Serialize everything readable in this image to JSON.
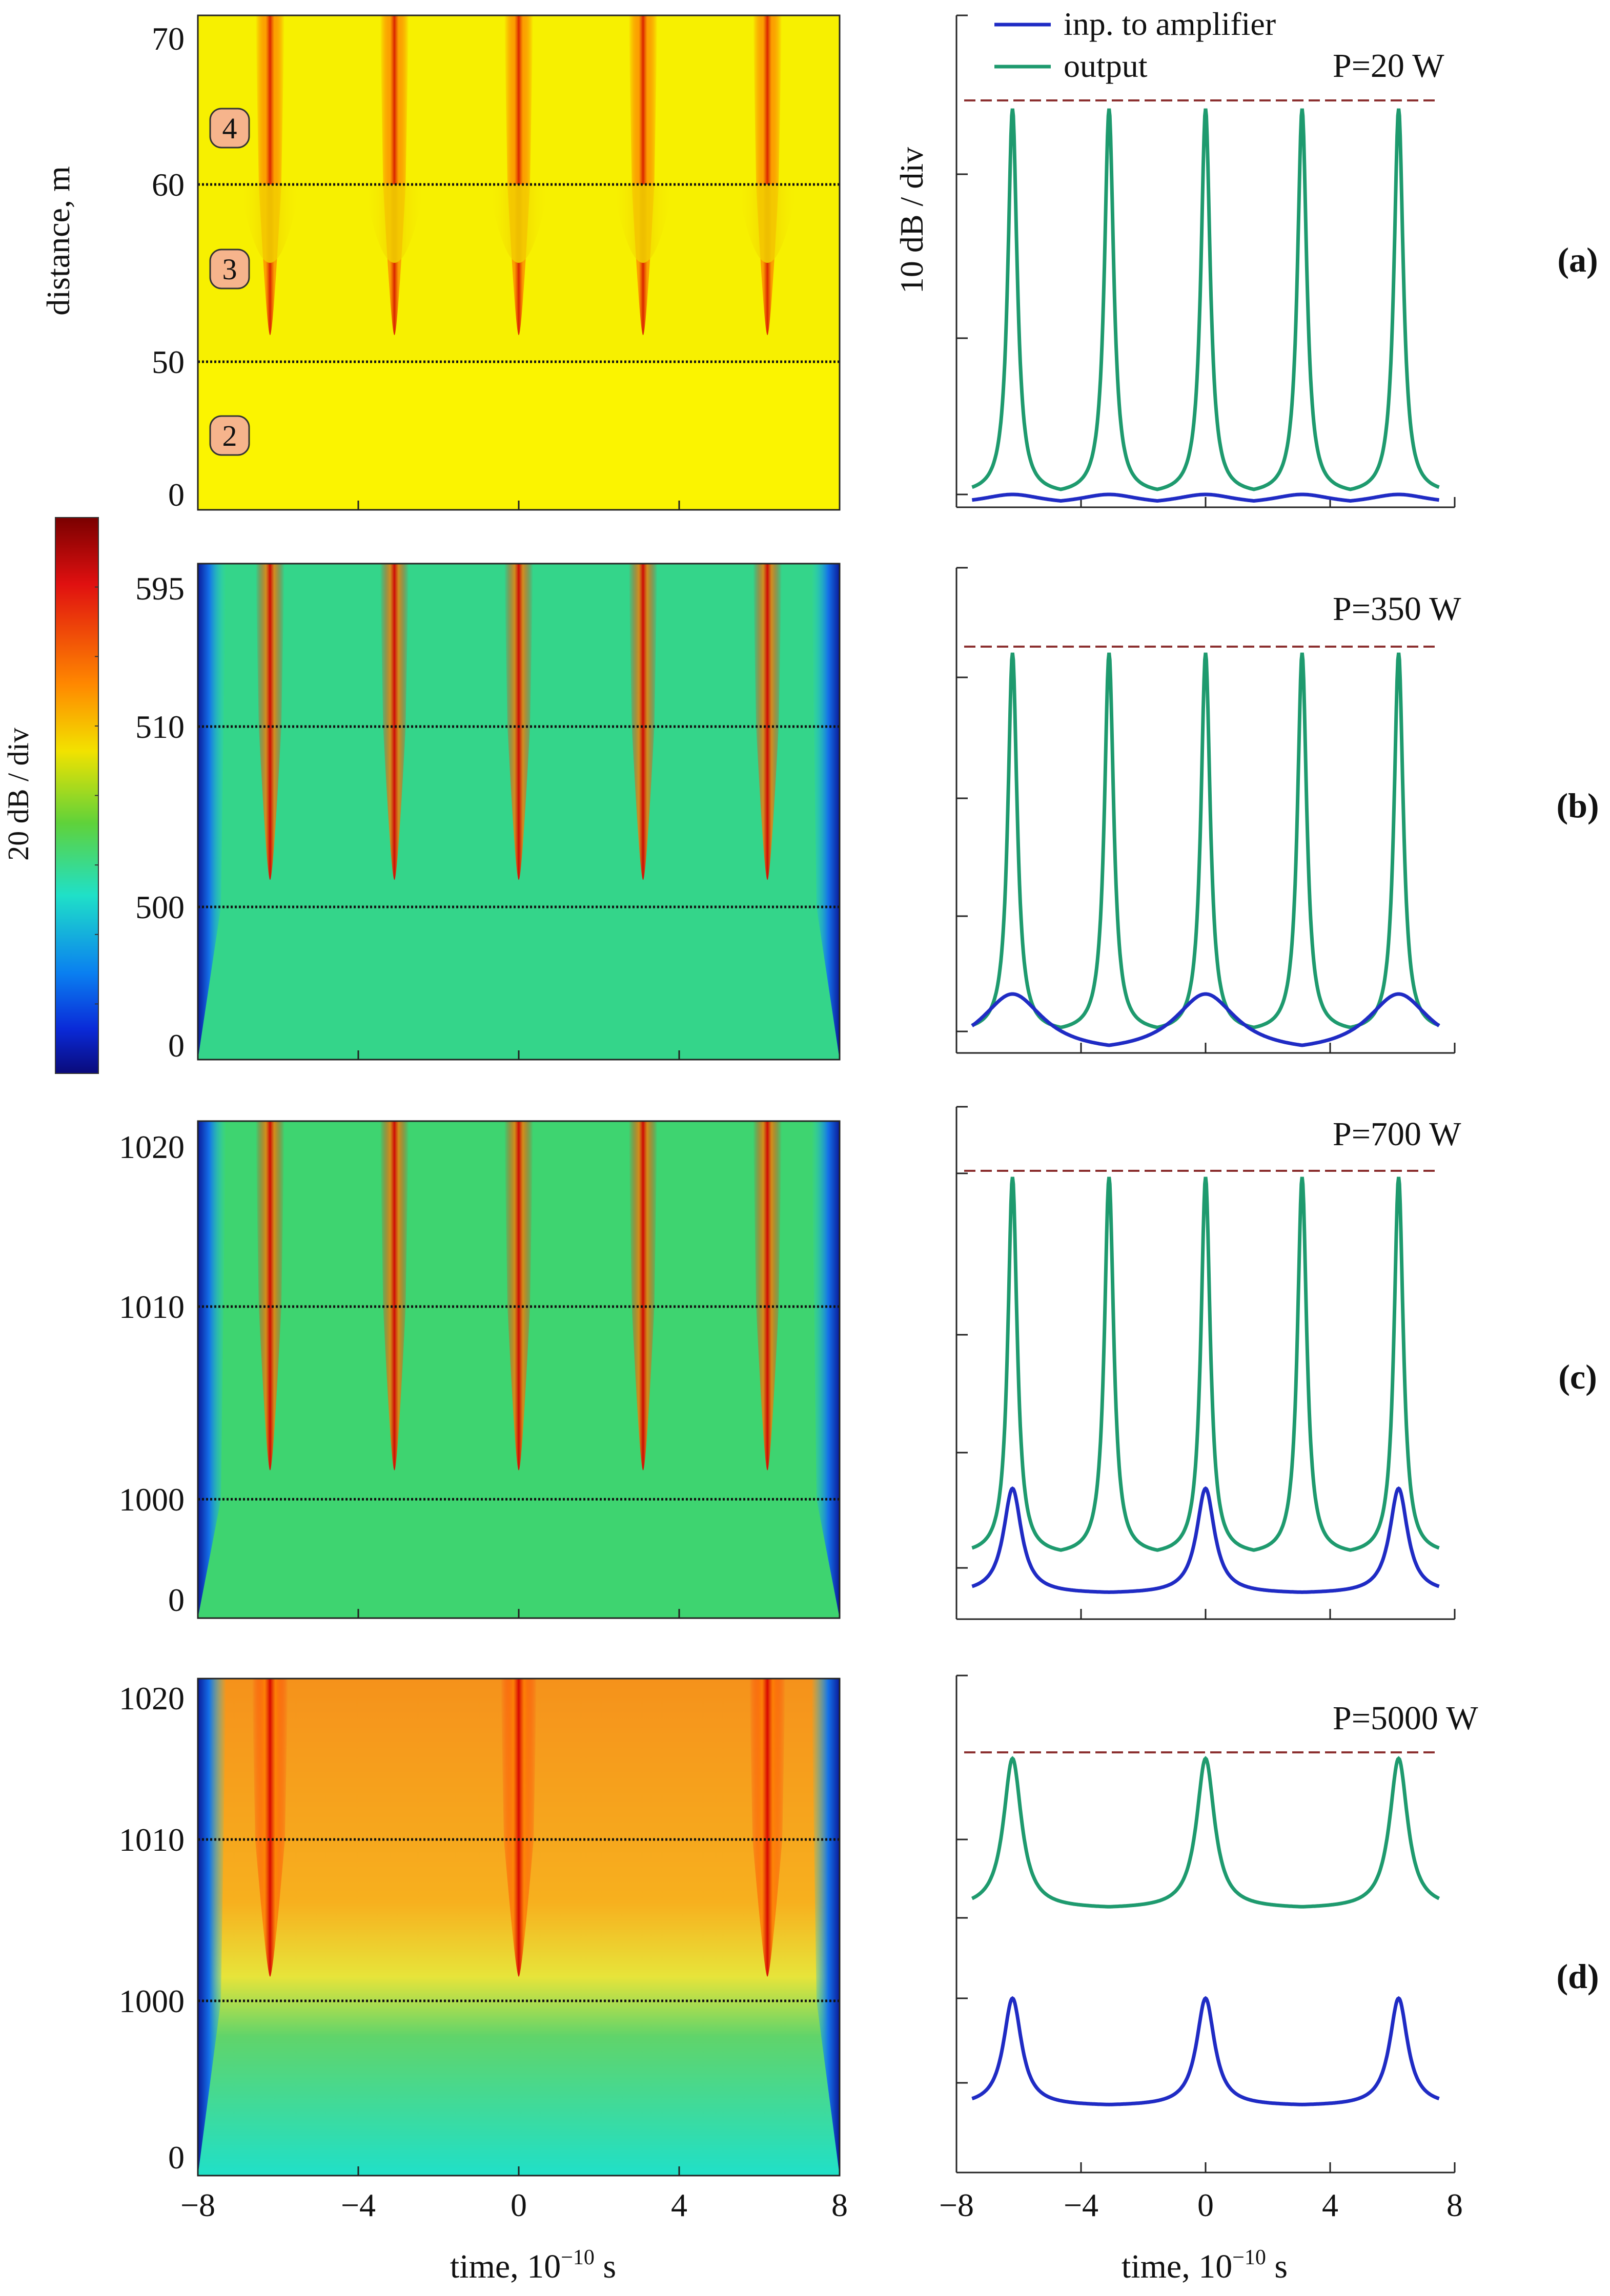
{
  "figure": {
    "shared_x_label_main": "time, 10",
    "shared_x_label_exp": "−10",
    "shared_x_label_unit": " s",
    "x_ticks": [
      "-8",
      "-4",
      "0",
      "4",
      "8"
    ],
    "colorbar_label": "20 dB / div",
    "right_ylabel": "10 dB / div",
    "legend": [
      {
        "label": "inp. to amplifier",
        "color": "#1f2bc4"
      },
      {
        "label": "output",
        "color": "#1e9a6e"
      }
    ],
    "left_ylabel": "distance, m"
  },
  "chart_data": [
    {
      "type": "heatmap",
      "panel": "(a)",
      "title": "",
      "xlabel": "time, 10^-10 s",
      "ylabel": "distance, m",
      "xlim": [
        -8,
        8
      ],
      "y_tick_labels": [
        "70",
        "60",
        "50",
        "0"
      ],
      "section_boundaries_m": [
        50,
        60
      ],
      "section_labels": [
        "4",
        "3",
        "2"
      ],
      "background_color": "#f7f000",
      "pulse_times": [
        -6.2,
        -3.1,
        0,
        3.1,
        6.2
      ],
      "colorbar_scale": "20 dB / div"
    },
    {
      "type": "line",
      "panel": "(a)",
      "power_label": "P=20 W",
      "xlim": [
        -8,
        8
      ],
      "ylabel": "10 dB / div",
      "series": [
        {
          "name": "inp. to amplifier",
          "peak_times": [
            -6.2,
            -3.1,
            0,
            3.1,
            6.2
          ],
          "relative_peak": 0.01
        },
        {
          "name": "output",
          "peak_times": [
            -6.2,
            -3.1,
            0,
            3.1,
            6.2
          ],
          "relative_peak": 0.97
        }
      ]
    },
    {
      "type": "heatmap",
      "panel": "(b)",
      "xlim": [
        -8,
        8
      ],
      "y_tick_labels": [
        "595",
        "510",
        "500",
        "0"
      ],
      "section_boundaries_m": [
        500,
        510
      ],
      "background_color": "#34d58a",
      "pulse_times": [
        -6.2,
        -3.1,
        0,
        3.1,
        6.2
      ]
    },
    {
      "type": "line",
      "panel": "(b)",
      "power_label": "P=350 W",
      "xlim": [
        -8,
        8
      ],
      "series": [
        {
          "name": "inp. to amplifier",
          "peak_times": [
            -6.2,
            0,
            6.2
          ],
          "relative_peak": 0.08
        },
        {
          "name": "output",
          "peak_times": [
            -6.2,
            -3.1,
            0,
            3.1,
            6.2
          ],
          "relative_peak": 0.96
        }
      ]
    },
    {
      "type": "heatmap",
      "panel": "(c)",
      "xlim": [
        -8,
        8
      ],
      "y_tick_labels": [
        "1020",
        "1010",
        "1000",
        "0"
      ],
      "section_boundaries_m": [
        1000,
        1010
      ],
      "background_color": "#3ed470",
      "pulse_times": [
        -6.2,
        -3.1,
        0,
        3.1,
        6.2
      ]
    },
    {
      "type": "line",
      "panel": "(c)",
      "power_label": "P=700 W",
      "xlim": [
        -8,
        8
      ],
      "series": [
        {
          "name": "inp. to amplifier",
          "peak_times": [
            -6.2,
            0,
            6.2
          ],
          "relative_peak": 0.25
        },
        {
          "name": "output",
          "peak_times": [
            -6.2,
            -3.1,
            0,
            3.1,
            6.2
          ],
          "relative_peak": 0.96
        }
      ]
    },
    {
      "type": "heatmap",
      "panel": "(d)",
      "xlim": [
        -8,
        8
      ],
      "y_tick_labels": [
        "1020",
        "1010",
        "1000",
        "0"
      ],
      "section_boundaries_m": [
        1000,
        1010
      ],
      "background_color": "#f5921b",
      "pulse_times": [
        -6.2,
        0,
        6.2
      ]
    },
    {
      "type": "line",
      "panel": "(d)",
      "power_label": "P=5000 W",
      "xlim": [
        -8,
        8
      ],
      "series": [
        {
          "name": "inp. to amplifier",
          "peak_times": [
            -6.2,
            0,
            6.2
          ],
          "relative_peak": 0.25
        },
        {
          "name": "output",
          "peak_times": [
            -6.2,
            0,
            6.2
          ],
          "relative_peak": 0.78
        }
      ]
    }
  ]
}
